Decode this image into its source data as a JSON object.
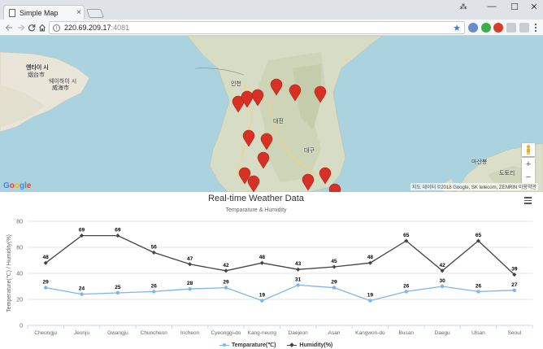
{
  "browser": {
    "tab_title": "Simple Map",
    "tab_close": "×",
    "url_host": "220.69.209.17",
    "url_port": ":4081",
    "window_controls": [
      "—",
      "☐",
      "✕"
    ],
    "user_glyph": "⁂"
  },
  "map": {
    "labels": [
      {
        "text": "옌타이 시",
        "cls": "lbl-yantai1"
      },
      {
        "text": "烟台市",
        "cls": "lbl-yantai2"
      },
      {
        "text": "웨이하이 시",
        "cls": "lbl-weihai1"
      },
      {
        "text": "威海市",
        "cls": "lbl-weihai2"
      },
      {
        "text": "인천",
        "cls": "lbl-incheon"
      },
      {
        "text": "대전",
        "cls": "lbl-daejeon"
      },
      {
        "text": "대구",
        "cls": "lbl-daegu"
      },
      {
        "text": "마산봉",
        "cls": "lbl-masan"
      },
      {
        "text": "도토리",
        "cls": "lbl-dotori"
      }
    ],
    "attribution": "지도 데이터 ©2018 Google, SK telecom, ZENRIN   이용약관",
    "google": [
      "G",
      "o",
      "o",
      "g",
      "l",
      "e"
    ]
  },
  "chart_data": {
    "type": "line",
    "title": "Real-time Weather Data",
    "subtitle": "Temparature & Humidity",
    "ylabel": "Temperature(℃) / Humidity(%)",
    "ylim": [
      0,
      80
    ],
    "yticks": [
      0,
      20,
      40,
      60,
      80
    ],
    "categories": [
      "Cheongju",
      "Jeonju",
      "Gwangju",
      "Chuncheon",
      "Incheon",
      "Cyeonggi-do",
      "Kang-neung",
      "Daejeon",
      "Asan",
      "Kangwon-do",
      "Busan",
      "Daegu",
      "Ulsan",
      "Seoul"
    ],
    "series": [
      {
        "name": "Temparature(℃)",
        "color": "#7cb5ec",
        "values": [
          29,
          24,
          25,
          26,
          28,
          29,
          19,
          31,
          29,
          19,
          26,
          30,
          26,
          27
        ]
      },
      {
        "name": "Humidity(%)",
        "color": "#434348",
        "values": [
          48,
          69,
          69,
          56,
          47,
          42,
          48,
          43,
          45,
          48,
          65,
          42,
          65,
          39
        ]
      }
    ],
    "legend": "bottom-center",
    "grid": true
  }
}
